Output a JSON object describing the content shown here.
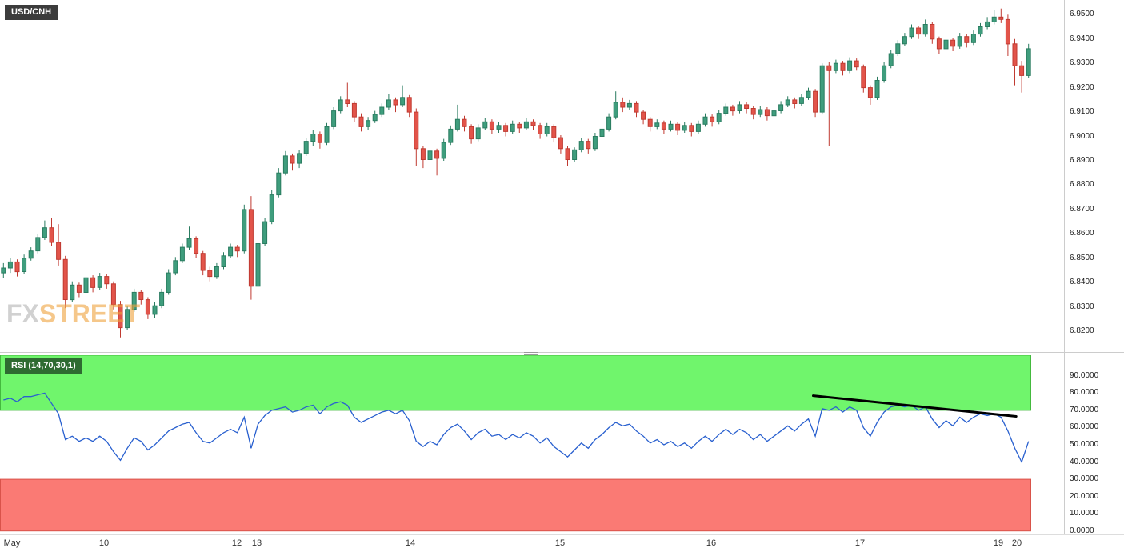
{
  "meta": {
    "pair_label": "USD/CNH",
    "indicator_label": "RSI (14,70,30,1)",
    "watermark_fx": "FX",
    "watermark_street": "STREET"
  },
  "colors": {
    "bull": "#3f9d7d",
    "bull_border": "#2a7c60",
    "bear": "#e2544a",
    "bear_border": "#c03a31",
    "rsi_line": "#2960cf",
    "zone_green": "#70f56c",
    "zone_green_border": "#44b93e",
    "zone_red": "#fa7a74",
    "zone_red_border": "#d9534a",
    "trendline": "#000000",
    "badge_dark": "#3c3c3c",
    "badge_green": "#2e6b31",
    "axis_text": "#1a1a1a",
    "watermark_fx": "#b3b3b3",
    "watermark_street": "#f0a23e"
  },
  "x_axis": {
    "ticks": [
      {
        "label": "May",
        "index": 1.3
      },
      {
        "label": "10",
        "index": 14.6
      },
      {
        "label": "12",
        "index": 33.9
      },
      {
        "label": "13",
        "index": 36.8
      },
      {
        "label": "14",
        "index": 59.2
      },
      {
        "label": "15",
        "index": 80.9
      },
      {
        "label": "16",
        "index": 102.9
      },
      {
        "label": "17",
        "index": 124.5
      },
      {
        "label": "19",
        "index": 144.6
      },
      {
        "label": "20",
        "index": 147.3
      }
    ]
  },
  "chart_data": [
    {
      "type": "candlestick",
      "title": "USD/CNH",
      "ylim": [
        6.8125,
        6.956
      ],
      "yticks": [
        "6.9500",
        "6.9400",
        "6.9300",
        "6.9200",
        "6.9100",
        "6.9000",
        "6.8900",
        "6.8800",
        "6.8700",
        "6.8600",
        "6.8500",
        "6.8400",
        "6.8300",
        "6.8200"
      ],
      "candles": [
        [
          6.844,
          6.848,
          6.842,
          6.846
        ],
        [
          6.846,
          6.85,
          6.844,
          6.8485
        ],
        [
          6.8485,
          6.8495,
          6.8425,
          6.8445
        ],
        [
          6.8445,
          6.8515,
          6.8435,
          6.85
        ],
        [
          6.85,
          6.8545,
          6.849,
          6.853
        ],
        [
          6.853,
          6.86,
          6.852,
          6.8585
        ],
        [
          6.8585,
          6.8655,
          6.8575,
          6.8625
        ],
        [
          6.8625,
          6.8665,
          6.855,
          6.8565
        ],
        [
          6.8565,
          6.864,
          6.847,
          6.8495
        ],
        [
          6.8495,
          6.851,
          6.8295,
          6.833
        ],
        [
          6.833,
          6.8405,
          6.832,
          6.839
        ],
        [
          6.839,
          6.84,
          6.834,
          6.836
        ],
        [
          6.836,
          6.8435,
          6.835,
          6.842
        ],
        [
          6.842,
          6.843,
          6.836,
          6.838
        ],
        [
          6.838,
          6.844,
          6.837,
          6.8425
        ],
        [
          6.8425,
          6.8435,
          6.8375,
          6.8395
        ],
        [
          6.8395,
          6.8405,
          6.829,
          6.831
        ],
        [
          6.831,
          6.8325,
          6.8175,
          6.8215
        ],
        [
          6.8215,
          6.8305,
          6.8205,
          6.829
        ],
        [
          6.829,
          6.8375,
          6.828,
          6.836
        ],
        [
          6.836,
          6.837,
          6.831,
          6.833
        ],
        [
          6.833,
          6.834,
          6.825,
          6.827
        ],
        [
          6.827,
          6.832,
          6.8255,
          6.8305
        ],
        [
          6.8305,
          6.8375,
          6.8295,
          6.836
        ],
        [
          6.836,
          6.8455,
          6.835,
          6.844
        ],
        [
          6.844,
          6.8505,
          6.843,
          6.849
        ],
        [
          6.849,
          6.856,
          6.848,
          6.8545
        ],
        [
          6.8545,
          6.863,
          6.8535,
          6.858
        ],
        [
          6.858,
          6.859,
          6.85,
          6.852
        ],
        [
          6.852,
          6.853,
          6.843,
          6.845
        ],
        [
          6.845,
          6.8465,
          6.8405,
          6.8425
        ],
        [
          6.8425,
          6.848,
          6.8415,
          6.8465
        ],
        [
          6.8465,
          6.8525,
          6.8455,
          6.851
        ],
        [
          6.851,
          6.856,
          6.85,
          6.8545
        ],
        [
          6.8545,
          6.8555,
          6.8505,
          6.853
        ],
        [
          6.853,
          6.872,
          6.852,
          6.87
        ],
        [
          6.87,
          6.8755,
          6.833,
          6.8385
        ],
        [
          6.8385,
          6.859,
          6.837,
          6.856
        ],
        [
          6.856,
          6.8665,
          6.855,
          6.865
        ],
        [
          6.865,
          6.878,
          6.864,
          6.876
        ],
        [
          6.876,
          6.887,
          6.875,
          6.885
        ],
        [
          6.885,
          6.894,
          6.884,
          6.892
        ],
        [
          6.892,
          6.893,
          6.886,
          6.889
        ],
        [
          6.889,
          6.8945,
          6.887,
          6.893
        ],
        [
          6.893,
          6.8995,
          6.892,
          6.898
        ],
        [
          6.898,
          6.9025,
          6.896,
          6.901
        ],
        [
          6.901,
          6.902,
          6.895,
          6.8975
        ],
        [
          6.8975,
          6.9055,
          6.8965,
          6.904
        ],
        [
          6.904,
          6.912,
          6.903,
          6.9105
        ],
        [
          6.9105,
          6.9165,
          6.9095,
          6.915
        ],
        [
          6.915,
          6.922,
          6.912,
          6.9135
        ],
        [
          6.9135,
          6.9145,
          6.906,
          6.908
        ],
        [
          6.908,
          6.9095,
          6.902,
          6.904
        ],
        [
          6.904,
          6.908,
          6.9025,
          6.9065
        ],
        [
          6.9065,
          6.9105,
          6.9055,
          6.909
        ],
        [
          6.909,
          6.9135,
          6.908,
          6.912
        ],
        [
          6.912,
          6.9175,
          6.911,
          6.915
        ],
        [
          6.915,
          6.916,
          6.91,
          6.913
        ],
        [
          6.913,
          6.921,
          6.912,
          6.916
        ],
        [
          6.916,
          6.917,
          6.908,
          6.91
        ],
        [
          6.91,
          6.9115,
          6.888,
          6.895
        ],
        [
          6.895,
          6.896,
          6.887,
          6.8905
        ],
        [
          6.8905,
          6.8955,
          6.889,
          6.894
        ],
        [
          6.894,
          6.895,
          6.884,
          6.891
        ],
        [
          6.891,
          6.899,
          6.89,
          6.8975
        ],
        [
          6.8975,
          6.9045,
          6.8965,
          6.903
        ],
        [
          6.903,
          6.913,
          6.902,
          6.907
        ],
        [
          6.907,
          6.9085,
          6.902,
          6.904
        ],
        [
          6.904,
          6.905,
          6.897,
          6.899
        ],
        [
          6.899,
          6.905,
          6.898,
          6.9035
        ],
        [
          6.9035,
          6.9075,
          6.9025,
          6.906
        ],
        [
          6.906,
          6.907,
          6.901,
          6.903
        ],
        [
          6.903,
          6.906,
          6.9015,
          6.9045
        ],
        [
          6.9045,
          6.9055,
          6.9,
          6.902
        ],
        [
          6.902,
          6.9065,
          6.901,
          6.905
        ],
        [
          6.905,
          6.906,
          6.9015,
          6.9035
        ],
        [
          6.9035,
          6.9075,
          6.9025,
          6.906
        ],
        [
          6.906,
          6.907,
          6.9025,
          6.9045
        ],
        [
          6.9045,
          6.9055,
          6.899,
          6.901
        ],
        [
          6.901,
          6.9055,
          6.9,
          6.904
        ],
        [
          6.904,
          6.905,
          6.8975,
          6.8995
        ],
        [
          6.8995,
          6.9005,
          6.893,
          6.895
        ],
        [
          6.895,
          6.896,
          6.888,
          6.8905
        ],
        [
          6.8905,
          6.8955,
          6.8895,
          6.8945
        ],
        [
          6.8945,
          6.8995,
          6.8935,
          6.898
        ],
        [
          6.898,
          6.899,
          6.893,
          6.895
        ],
        [
          6.895,
          6.9015,
          6.894,
          6.9
        ],
        [
          6.9,
          6.9045,
          6.899,
          6.903
        ],
        [
          6.903,
          6.9095,
          6.902,
          6.908
        ],
        [
          6.908,
          6.9185,
          6.907,
          6.914
        ],
        [
          6.914,
          6.916,
          6.91,
          6.912
        ],
        [
          6.912,
          6.915,
          6.911,
          6.9135
        ],
        [
          6.9135,
          6.9145,
          6.908,
          6.91
        ],
        [
          6.91,
          6.911,
          6.905,
          6.907
        ],
        [
          6.907,
          6.908,
          6.902,
          6.904
        ],
        [
          6.904,
          6.907,
          6.903,
          6.9055
        ],
        [
          6.9055,
          6.9065,
          6.901,
          6.903
        ],
        [
          6.903,
          6.9065,
          6.902,
          6.905
        ],
        [
          6.905,
          6.906,
          6.9005,
          6.9025
        ],
        [
          6.9025,
          6.906,
          6.9015,
          6.9045
        ],
        [
          6.9045,
          6.9055,
          6.9,
          6.902
        ],
        [
          6.902,
          6.9065,
          6.901,
          6.905
        ],
        [
          6.905,
          6.9095,
          6.904,
          6.908
        ],
        [
          6.908,
          6.909,
          6.904,
          6.906
        ],
        [
          6.906,
          6.911,
          6.905,
          6.9095
        ],
        [
          6.9095,
          6.9135,
          6.9085,
          6.912
        ],
        [
          6.912,
          6.913,
          6.9085,
          6.9105
        ],
        [
          6.9105,
          6.9145,
          6.9095,
          6.913
        ],
        [
          6.913,
          6.914,
          6.9095,
          6.9115
        ],
        [
          6.9115,
          6.9125,
          6.907,
          6.909
        ],
        [
          6.909,
          6.9125,
          6.908,
          6.911
        ],
        [
          6.911,
          6.912,
          6.9065,
          6.9085
        ],
        [
          6.9085,
          6.912,
          6.9075,
          6.9105
        ],
        [
          6.9105,
          6.9145,
          6.9095,
          6.913
        ],
        [
          6.913,
          6.9165,
          6.912,
          6.915
        ],
        [
          6.915,
          6.916,
          6.9115,
          6.9135
        ],
        [
          6.9135,
          6.9175,
          6.9125,
          6.916
        ],
        [
          6.916,
          6.92,
          6.915,
          6.9185
        ],
        [
          6.9185,
          6.9195,
          6.908,
          6.91
        ],
        [
          6.91,
          6.93,
          6.909,
          6.929
        ],
        [
          6.929,
          6.9305,
          6.896,
          6.927
        ],
        [
          6.927,
          6.9315,
          6.926,
          6.93
        ],
        [
          6.93,
          6.931,
          6.925,
          6.927
        ],
        [
          6.927,
          6.9325,
          6.926,
          6.931
        ],
        [
          6.931,
          6.932,
          6.927,
          6.9285
        ],
        [
          6.9285,
          6.9295,
          6.918,
          6.92
        ],
        [
          6.92,
          6.921,
          6.913,
          6.916
        ],
        [
          6.916,
          6.9245,
          6.915,
          6.923
        ],
        [
          6.923,
          6.9305,
          6.922,
          6.929
        ],
        [
          6.929,
          6.9355,
          6.928,
          6.934
        ],
        [
          6.934,
          6.9395,
          6.933,
          6.938
        ],
        [
          6.938,
          6.9425,
          6.937,
          6.941
        ],
        [
          6.941,
          6.946,
          6.94,
          6.9445
        ],
        [
          6.9445,
          6.9455,
          6.94,
          6.942
        ],
        [
          6.942,
          6.948,
          6.941,
          6.946
        ],
        [
          6.946,
          6.947,
          6.938,
          6.94
        ],
        [
          6.94,
          6.941,
          6.934,
          6.936
        ],
        [
          6.936,
          6.941,
          6.935,
          6.9395
        ],
        [
          6.9395,
          6.9405,
          6.935,
          6.937
        ],
        [
          6.937,
          6.9425,
          6.936,
          6.941
        ],
        [
          6.941,
          6.942,
          6.9365,
          6.9385
        ],
        [
          6.9385,
          6.9435,
          6.9375,
          6.942
        ],
        [
          6.942,
          6.9465,
          6.941,
          6.945
        ],
        [
          6.945,
          6.949,
          6.944,
          6.947
        ],
        [
          6.947,
          6.952,
          6.946,
          6.949
        ],
        [
          6.949,
          6.9525,
          6.9465,
          6.948
        ],
        [
          6.948,
          6.95,
          6.933,
          6.938
        ],
        [
          6.938,
          6.94,
          6.921,
          6.929
        ],
        [
          6.929,
          6.931,
          6.918,
          6.925
        ],
        [
          6.925,
          6.938,
          6.924,
          6.936
        ]
      ]
    },
    {
      "type": "line",
      "name": "RSI (14,70,30,1)",
      "ylim": [
        -2,
        102
      ],
      "yticks": [
        "90.0000",
        "80.0000",
        "70.0000",
        "60.0000",
        "50.0000",
        "40.0000",
        "30.0000",
        "20.0000",
        "10.0000",
        "0.0000"
      ],
      "zones": [
        {
          "name": "overbought",
          "from": 70,
          "to": 102
        },
        {
          "name": "oversold",
          "from": 0,
          "to": 30
        }
      ],
      "values": [
        76,
        77,
        75,
        78,
        78,
        79,
        80,
        74,
        68,
        53,
        55,
        52,
        54,
        52,
        55,
        52,
        46,
        41,
        48,
        54,
        52,
        47,
        50,
        54,
        58,
        60,
        62,
        63,
        57,
        52,
        51,
        54,
        57,
        59,
        57,
        66,
        48,
        62,
        67,
        70,
        71,
        72,
        69,
        70,
        72,
        73,
        68,
        72,
        74,
        75,
        73,
        66,
        63,
        65,
        67,
        69,
        70,
        68,
        70,
        64,
        52,
        49,
        52,
        50,
        56,
        60,
        62,
        58,
        53,
        57,
        59,
        55,
        56,
        53,
        56,
        54,
        57,
        55,
        51,
        54,
        49,
        46,
        43,
        47,
        51,
        48,
        53,
        56,
        60,
        63,
        61,
        62,
        58,
        55,
        51,
        53,
        50,
        52,
        49,
        51,
        48,
        52,
        55,
        52,
        56,
        59,
        56,
        59,
        57,
        53,
        56,
        52,
        55,
        58,
        61,
        58,
        62,
        65,
        55,
        71,
        70,
        72,
        69,
        72,
        70,
        60,
        55,
        63,
        69,
        72,
        73,
        72,
        73,
        70,
        72,
        65,
        60,
        64,
        61,
        66,
        63,
        66,
        68,
        67,
        68,
        66,
        58,
        48,
        40,
        52
      ],
      "trendline": {
        "from_index": 117.7,
        "from_value": 78.5,
        "to_index": 147.2,
        "to_value": 66.5
      }
    }
  ]
}
